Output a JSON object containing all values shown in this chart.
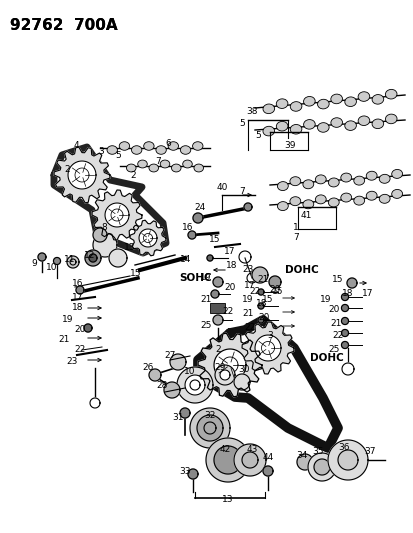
{
  "bg_color": "#ffffff",
  "fg_color": "#000000",
  "title": "92762  700A",
  "sohc_label": "SOHC",
  "dohc_label1": "DOHC",
  "dohc_label2": "DOHC"
}
